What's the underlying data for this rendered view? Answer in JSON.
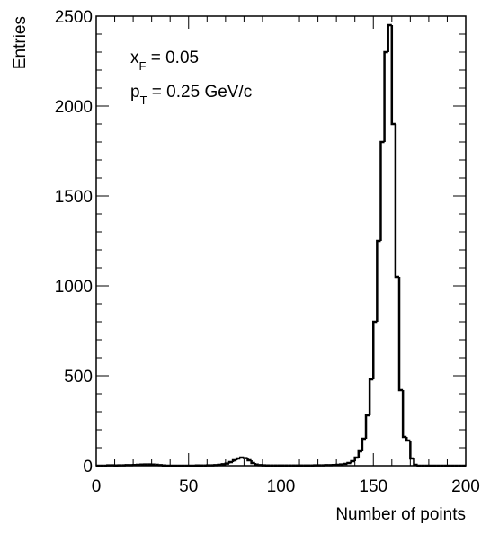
{
  "chart_data": {
    "type": "histogram",
    "xlabel": "Number of points",
    "ylabel": "Entries",
    "annotations": [
      {
        "text": "x",
        "sub": "F",
        "rest": " = 0.05"
      },
      {
        "text": "p",
        "sub": "T",
        "rest": " = 0.25 GeV/c"
      }
    ],
    "bins": [
      0,
      2,
      4,
      6,
      8,
      10,
      12,
      14,
      16,
      18,
      20,
      22,
      24,
      26,
      28,
      30,
      32,
      34,
      36,
      38,
      40,
      42,
      44,
      46,
      48,
      50,
      52,
      54,
      56,
      58,
      60,
      62,
      64,
      66,
      68,
      70,
      72,
      74,
      76,
      78,
      80,
      82,
      84,
      86,
      88,
      90,
      92,
      94,
      96,
      98,
      100,
      102,
      104,
      106,
      108,
      110,
      112,
      114,
      116,
      118,
      120,
      122,
      124,
      126,
      128,
      130,
      132,
      134,
      136,
      138,
      140,
      142,
      144,
      146,
      148,
      150,
      152,
      154,
      156,
      158,
      160,
      162,
      164,
      166,
      168,
      170,
      172,
      174,
      176,
      178,
      180,
      182,
      184,
      186,
      188,
      190,
      192,
      194,
      196,
      198,
      200
    ],
    "values": [
      0,
      0,
      0,
      2,
      2,
      1,
      2,
      2,
      3,
      3,
      4,
      5,
      6,
      7,
      7,
      6,
      5,
      3,
      1,
      0,
      0,
      0,
      0,
      0,
      0,
      0,
      0,
      1,
      1,
      1,
      2,
      2,
      3,
      5,
      8,
      12,
      20,
      30,
      40,
      45,
      42,
      30,
      15,
      6,
      3,
      2,
      1,
      1,
      1,
      1,
      1,
      1,
      1,
      1,
      1,
      1,
      1,
      1,
      1,
      2,
      2,
      2,
      3,
      3,
      4,
      5,
      7,
      10,
      15,
      25,
      45,
      80,
      150,
      280,
      480,
      800,
      1250,
      1800,
      2300,
      2450,
      1900,
      1050,
      420,
      160,
      140,
      40,
      5,
      0,
      0,
      0,
      0,
      0,
      0,
      0,
      0,
      0,
      0,
      0,
      0,
      0
    ],
    "color": "#000000",
    "xlim": [
      0,
      200
    ],
    "xticks": [
      0,
      50,
      100,
      150,
      200
    ],
    "ylim": [
      0,
      2500
    ],
    "yticks": [
      0,
      500,
      1000,
      1500,
      2000,
      2500
    ]
  }
}
